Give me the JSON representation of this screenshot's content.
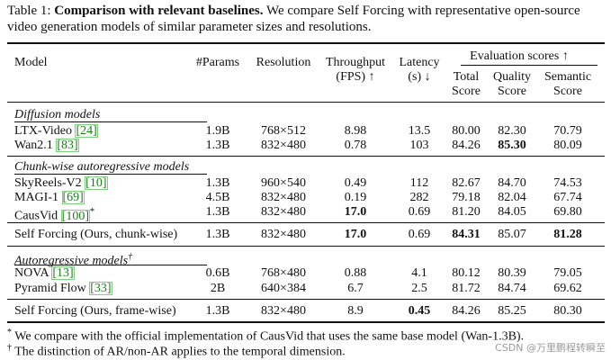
{
  "caption": {
    "label": "Table 1:",
    "bold": "Comparison with relevant baselines.",
    "rest": "We compare Self Forcing with representative open-source video generation models of similar parameter sizes and resolutions."
  },
  "header": {
    "model": "Model",
    "params": "#Params",
    "resolution": "Resolution",
    "throughput_1": "Throughput",
    "throughput_2": "(FPS) ↑",
    "latency_1": "Latency",
    "latency_2": "(s) ↓",
    "eval": "Evaluation scores ↑",
    "total_1": "Total",
    "total_2": "Score",
    "quality_1": "Quality",
    "quality_2": "Score",
    "semantic_1": "Semantic",
    "semantic_2": "Score"
  },
  "sections": {
    "diffusion": "Diffusion models",
    "chunk": "Chunk-wise autoregressive models",
    "ar": "Autoregressive models",
    "ar_sup": "†"
  },
  "rows": {
    "ltx": {
      "name": "LTX-Video ",
      "ref": "[24]",
      "params": "1.9B",
      "res": "768×512",
      "fps": "8.98",
      "lat": "13.5",
      "total": "80.00",
      "quality": "82.30",
      "semantic": "70.79"
    },
    "wan": {
      "name": "Wan2.1 ",
      "ref": "[83]",
      "params": "1.3B",
      "res": "832×480",
      "fps": "0.78",
      "lat": "103",
      "total": "84.26",
      "quality": "85.30",
      "semantic": "80.09"
    },
    "sky": {
      "name": "SkyReels-V2 ",
      "ref": "[10]",
      "params": "1.3B",
      "res": "960×540",
      "fps": "0.49",
      "lat": "112",
      "total": "82.67",
      "quality": "84.70",
      "semantic": "74.53"
    },
    "magi": {
      "name": "MAGI-1 ",
      "ref": "[69]",
      "params": "4.5B",
      "res": "832×480",
      "fps": "0.19",
      "lat": "282",
      "total": "79.18",
      "quality": "82.04",
      "semantic": "67.74"
    },
    "caus": {
      "name": "CausVid ",
      "ref": "[100]",
      "sup": "*",
      "params": "1.3B",
      "res": "832×480",
      "fps": "17.0",
      "lat": "0.69",
      "total": "81.20",
      "quality": "84.05",
      "semantic": "69.80"
    },
    "sfc": {
      "name": "Self Forcing (Ours, chunk-wise)",
      "params": "1.3B",
      "res": "832×480",
      "fps": "17.0",
      "lat": "0.69",
      "total": "84.31",
      "quality": "85.07",
      "semantic": "81.28"
    },
    "nova": {
      "name": "NOVA ",
      "ref": "[13]",
      "params": "0.6B",
      "res": "768×480",
      "fps": "0.88",
      "lat": "4.1",
      "total": "80.12",
      "quality": "80.39",
      "semantic": "79.05"
    },
    "pyr": {
      "name": "Pyramid Flow ",
      "ref": "[33]",
      "params": "2B",
      "res": "640×384",
      "fps": "6.7",
      "lat": "2.5",
      "total": "81.72",
      "quality": "84.74",
      "semantic": "69.62"
    },
    "sff": {
      "name": "Self Forcing (Ours, frame-wise)",
      "params": "1.3B",
      "res": "832×480",
      "fps": "8.9",
      "lat": "0.45",
      "total": "84.26",
      "quality": "85.25",
      "semantic": "80.30"
    }
  },
  "footnotes": {
    "f1_mark": "*",
    "f1": "We compare with the official implementation of CausVid that uses the same base model (Wan-1.3B).",
    "f2_mark": "†",
    "f2": "The distinction of AR/non-AR applies to the temporal dimension."
  },
  "watermark": "CSDN @万里鹏程转瞬至"
}
